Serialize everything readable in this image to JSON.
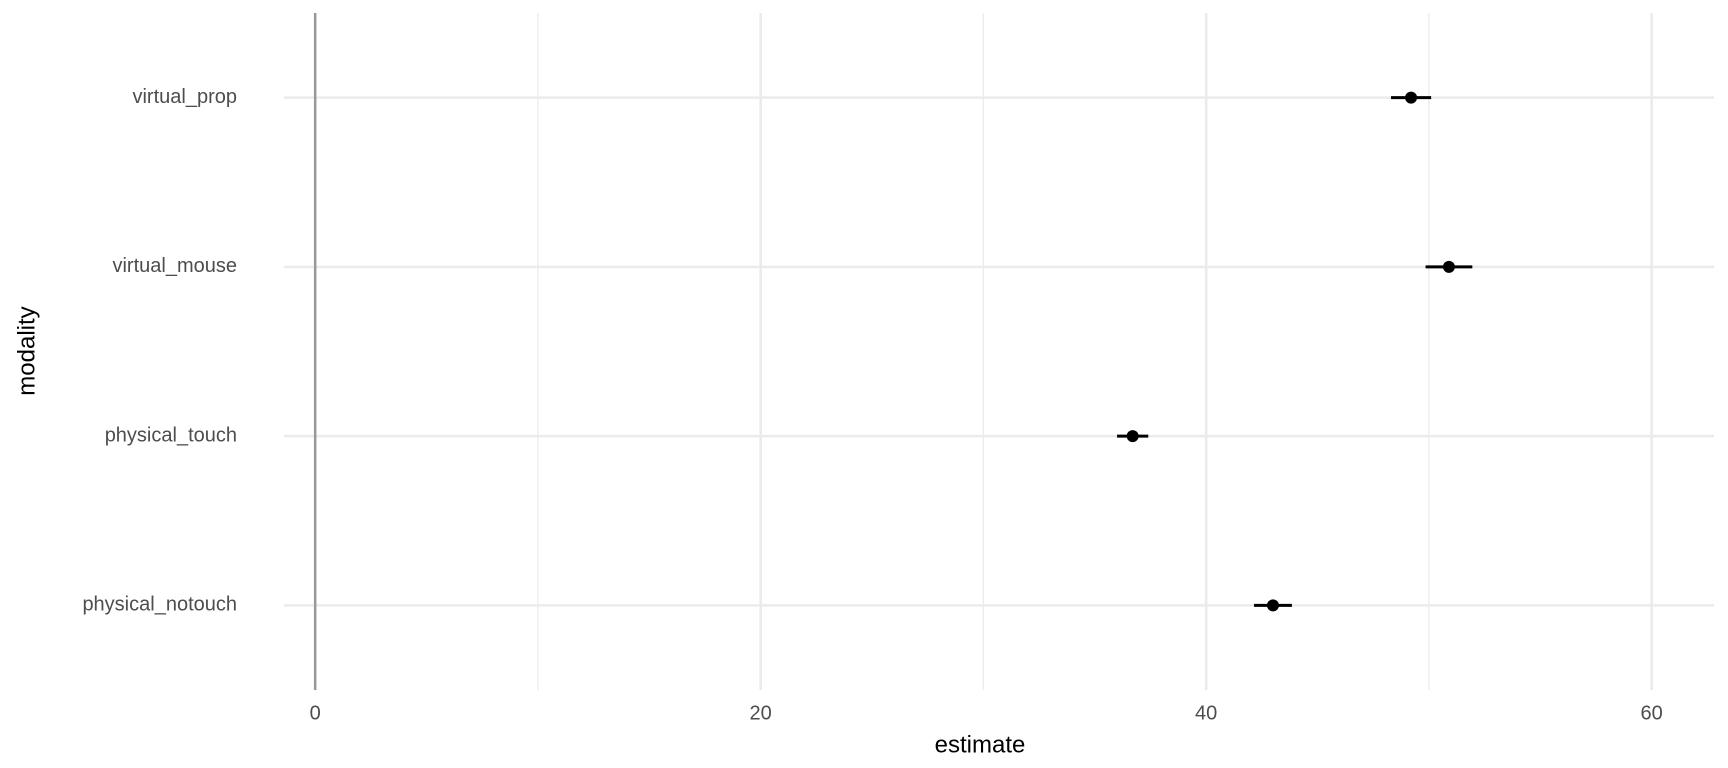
{
  "chart_data": {
    "type": "pointrange",
    "x_label": "estimate",
    "y_label": "modality",
    "categories": [
      "physical_notouch",
      "physical_touch",
      "virtual_mouse",
      "virtual_prop"
    ],
    "series": [
      {
        "color": "#000000",
        "values": [
          43.0,
          36.7,
          50.9,
          49.2
        ],
        "errors": [
          0.85,
          0.7,
          1.05,
          0.9
        ]
      }
    ],
    "xlim": [
      -1.4,
      62.8
    ],
    "xticks": [
      0,
      20,
      40,
      60
    ],
    "xminorticks": [
      10,
      30,
      50
    ],
    "reference_line": 0,
    "grid": true
  }
}
